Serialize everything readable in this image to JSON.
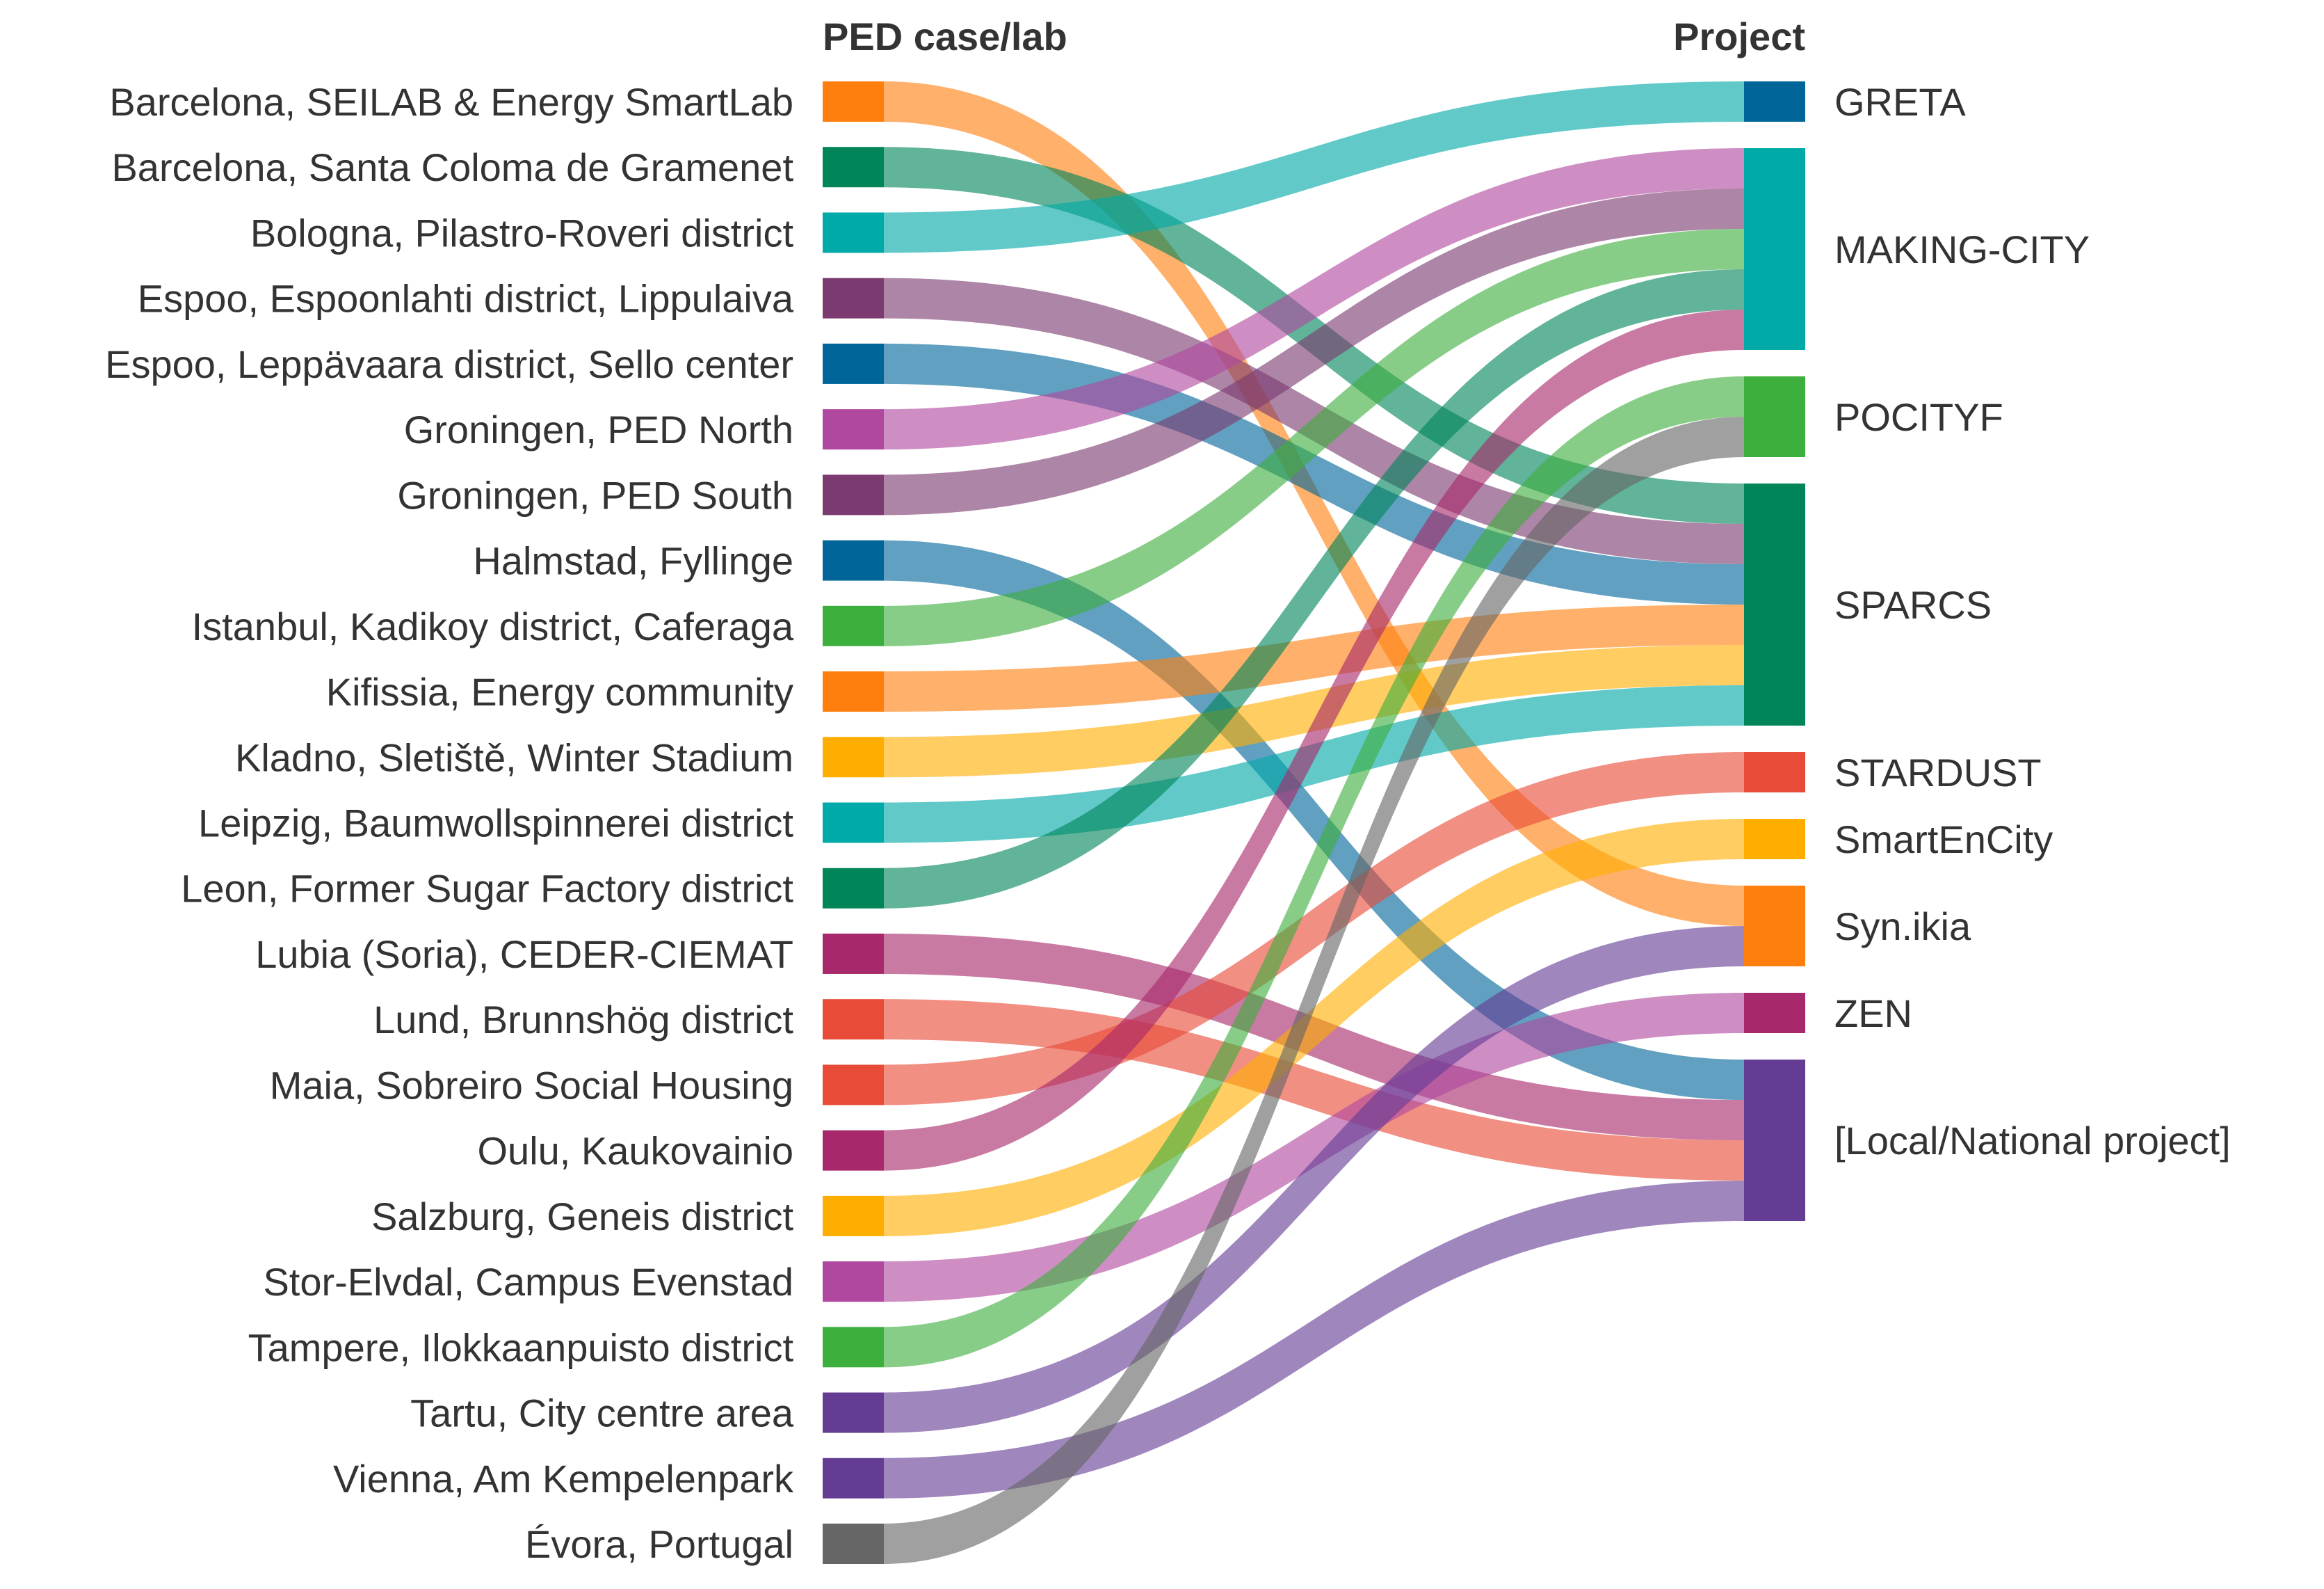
{
  "chart_data": {
    "type": "sankey",
    "left_header": "PED case/lab",
    "right_header": "Project",
    "cases": [
      {
        "name": "Barcelona, SEILAB & Energy SmartLab",
        "color": "#FF7F0E",
        "project": "Syn.ikia"
      },
      {
        "name": "Barcelona, Santa Coloma de Gramenet",
        "color": "#00855A",
        "project": "SPARCS"
      },
      {
        "name": "Bologna, Pilastro-Roveri district",
        "color": "#00AAA8",
        "project": "GRETA"
      },
      {
        "name": "Espoo, Espoonlahti district, Lippulaiva",
        "color": "#7B3A70",
        "project": "SPARCS"
      },
      {
        "name": "Espoo, Leppävaara district, Sello center",
        "color": "#006599",
        "project": "SPARCS"
      },
      {
        "name": "Groningen, PED North",
        "color": "#B0489F",
        "project": "MAKING-CITY"
      },
      {
        "name": "Groningen, PED South",
        "color": "#7B3A70",
        "project": "MAKING-CITY"
      },
      {
        "name": "Halmstad, Fyllinge",
        "color": "#006599",
        "project": "[Local/National project]"
      },
      {
        "name": "Istanbul, Kadikoy district, Caferaga",
        "color": "#3DAF3D",
        "project": "MAKING-CITY"
      },
      {
        "name": "Kifissia, Energy community",
        "color": "#FF7F0E",
        "project": "SPARCS"
      },
      {
        "name": "Kladno, Sletiště, Winter Stadium",
        "color": "#FFAE00",
        "project": "SPARCS"
      },
      {
        "name": "Leipzig, Baumwollspinnerei district",
        "color": "#00AAA8",
        "project": "SPARCS"
      },
      {
        "name": "Leon, Former Sugar Factory district",
        "color": "#00855A",
        "project": "MAKING-CITY"
      },
      {
        "name": "Lubia (Soria), CEDER-CIEMAT",
        "color": "#A8296B",
        "project": "[Local/National project]"
      },
      {
        "name": "Lund, Brunnshög district",
        "color": "#E84B37",
        "project": "[Local/National project]"
      },
      {
        "name": "Maia, Sobreiro Social Housing",
        "color": "#E84B37",
        "project": "STARDUST"
      },
      {
        "name": "Oulu, Kaukovainio",
        "color": "#A8296B",
        "project": "MAKING-CITY"
      },
      {
        "name": "Salzburg, Geneis district",
        "color": "#FFAE00",
        "project": "SmartEnCity"
      },
      {
        "name": "Stor-Elvdal, Campus Evenstad",
        "color": "#B0489F",
        "project": "ZEN"
      },
      {
        "name": "Tampere, Ilokkaanpuisto district",
        "color": "#3DAF3D",
        "project": "POCITYF"
      },
      {
        "name": "Tartu, City centre area",
        "color": "#643C94",
        "project": "Syn.ikia"
      },
      {
        "name": "Vienna, Am Kempelenpark",
        "color": "#643C94",
        "project": "[Local/National project]"
      },
      {
        "name": "Évora, Portugal",
        "color": "#666666",
        "project": "POCITYF"
      }
    ],
    "projects": [
      {
        "name": "GRETA",
        "color": "#006599"
      },
      {
        "name": "MAKING-CITY",
        "color": "#00AAA8"
      },
      {
        "name": "POCITYF",
        "color": "#3DAF3D"
      },
      {
        "name": "SPARCS",
        "color": "#00855A"
      },
      {
        "name": "STARDUST",
        "color": "#E84B37"
      },
      {
        "name": "SmartEnCity",
        "color": "#FFAE00"
      },
      {
        "name": "Syn.ikia",
        "color": "#FF7F0E"
      },
      {
        "name": "ZEN",
        "color": "#A8296B"
      },
      {
        "name": "[Local/National project]",
        "color": "#643C94"
      }
    ]
  }
}
